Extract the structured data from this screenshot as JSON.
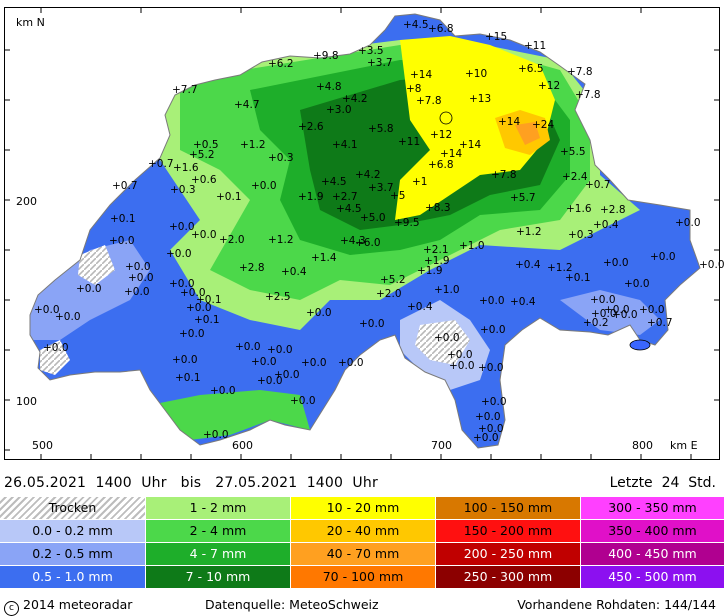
{
  "map": {
    "axis_y_unit": "km N",
    "axis_x_unit": "km E",
    "y_ticks": [
      "200",
      "100"
    ],
    "x_ticks": [
      "500",
      "600",
      "700",
      "800"
    ],
    "stations": [
      {
        "v": "4.5",
        "x": 403,
        "y": 28
      },
      {
        "v": "6.8",
        "x": 428,
        "y": 32
      },
      {
        "v": "15",
        "x": 485,
        "y": 40
      },
      {
        "v": "11",
        "x": 524,
        "y": 49
      },
      {
        "v": "3.5",
        "x": 358,
        "y": 54
      },
      {
        "v": "3.7",
        "x": 367,
        "y": 66
      },
      {
        "v": "9.8",
        "x": 313,
        "y": 59
      },
      {
        "v": "6.2",
        "x": 268,
        "y": 67
      },
      {
        "v": "7.8",
        "x": 567,
        "y": 75
      },
      {
        "v": "6.5",
        "x": 518,
        "y": 72
      },
      {
        "v": "10",
        "x": 465,
        "y": 77
      },
      {
        "v": "14",
        "x": 410,
        "y": 78
      },
      {
        "v": "12",
        "x": 538,
        "y": 89
      },
      {
        "v": "7.8",
        "x": 575,
        "y": 98
      },
      {
        "v": "7.7",
        "x": 172,
        "y": 93
      },
      {
        "v": "4.8",
        "x": 316,
        "y": 90
      },
      {
        "v": "4.2",
        "x": 342,
        "y": 102
      },
      {
        "v": "8",
        "x": 406,
        "y": 92
      },
      {
        "v": "7.8",
        "x": 416,
        "y": 104
      },
      {
        "v": "13",
        "x": 469,
        "y": 102
      },
      {
        "v": "4.7",
        "x": 234,
        "y": 108
      },
      {
        "v": "3.0",
        "x": 326,
        "y": 113
      },
      {
        "v": "14",
        "x": 498,
        "y": 125
      },
      {
        "v": "24",
        "x": 532,
        "y": 128
      },
      {
        "v": "2.6",
        "x": 298,
        "y": 130
      },
      {
        "v": "5.8",
        "x": 368,
        "y": 132
      },
      {
        "v": "12",
        "x": 430,
        "y": 138
      },
      {
        "v": "11",
        "x": 398,
        "y": 145
      },
      {
        "v": "14",
        "x": 459,
        "y": 148
      },
      {
        "v": "0.5",
        "x": 193,
        "y": 148
      },
      {
        "v": "4.1",
        "x": 332,
        "y": 148
      },
      {
        "v": "1.2",
        "x": 240,
        "y": 148
      },
      {
        "v": "5.2",
        "x": 189,
        "y": 158
      },
      {
        "v": "0.3",
        "x": 268,
        "y": 161
      },
      {
        "v": "14",
        "x": 440,
        "y": 157
      },
      {
        "v": "5.5",
        "x": 560,
        "y": 155
      },
      {
        "v": "0.7",
        "x": 148,
        "y": 167
      },
      {
        "v": "1.6",
        "x": 173,
        "y": 171
      },
      {
        "v": "6.8",
        "x": 428,
        "y": 168
      },
      {
        "v": "0.6",
        "x": 191,
        "y": 183
      },
      {
        "v": "4.5",
        "x": 321,
        "y": 185
      },
      {
        "v": "4.2",
        "x": 355,
        "y": 178
      },
      {
        "v": "3.7",
        "x": 368,
        "y": 191
      },
      {
        "v": "1",
        "x": 412,
        "y": 185
      },
      {
        "v": "7.8",
        "x": 491,
        "y": 178
      },
      {
        "v": "2.4",
        "x": 562,
        "y": 180
      },
      {
        "v": "0.7",
        "x": 112,
        "y": 189
      },
      {
        "v": "0.3",
        "x": 170,
        "y": 193
      },
      {
        "v": "0.0",
        "x": 251,
        "y": 189
      },
      {
        "v": "0.7",
        "x": 585,
        "y": 188
      },
      {
        "v": "1.9",
        "x": 298,
        "y": 200
      },
      {
        "v": "2.7",
        "x": 332,
        "y": 200
      },
      {
        "v": "5",
        "x": 390,
        "y": 199
      },
      {
        "v": "5.7",
        "x": 510,
        "y": 201
      },
      {
        "v": "0.1",
        "x": 216,
        "y": 200
      },
      {
        "v": "4.5",
        "x": 336,
        "y": 212
      },
      {
        "v": "8.3",
        "x": 425,
        "y": 211
      },
      {
        "v": "1.6",
        "x": 566,
        "y": 212
      },
      {
        "v": "2.8",
        "x": 600,
        "y": 213
      },
      {
        "v": "0.1",
        "x": 110,
        "y": 222
      },
      {
        "v": "5.0",
        "x": 360,
        "y": 221
      },
      {
        "v": "9.5",
        "x": 394,
        "y": 226
      },
      {
        "v": "0.4",
        "x": 593,
        "y": 228
      },
      {
        "v": "0.0",
        "x": 675,
        "y": 226
      },
      {
        "v": "0.0",
        "x": 169,
        "y": 230
      },
      {
        "v": "1.2",
        "x": 516,
        "y": 235
      },
      {
        "v": "0.3",
        "x": 568,
        "y": 238
      },
      {
        "v": "0.0",
        "x": 191,
        "y": 238
      },
      {
        "v": "0.0",
        "x": 109,
        "y": 244
      },
      {
        "v": "2.0",
        "x": 219,
        "y": 243
      },
      {
        "v": "1.2",
        "x": 268,
        "y": 243
      },
      {
        "v": "4.3",
        "x": 340,
        "y": 244
      },
      {
        "v": "6.0",
        "x": 355,
        "y": 246
      },
      {
        "v": "2.1",
        "x": 423,
        "y": 253
      },
      {
        "v": "1.0",
        "x": 459,
        "y": 249
      },
      {
        "v": "0.0",
        "x": 166,
        "y": 257
      },
      {
        "v": "1.9",
        "x": 424,
        "y": 264
      },
      {
        "v": "1.4",
        "x": 311,
        "y": 261
      },
      {
        "v": "0.0",
        "x": 603,
        "y": 266
      },
      {
        "v": "0.0",
        "x": 650,
        "y": 260
      },
      {
        "v": "0.0",
        "x": 699,
        "y": 268
      },
      {
        "v": "0.0",
        "x": 125,
        "y": 270
      },
      {
        "v": "2.8",
        "x": 239,
        "y": 271
      },
      {
        "v": "0.4",
        "x": 281,
        "y": 275
      },
      {
        "v": "1.9",
        "x": 417,
        "y": 274
      },
      {
        "v": "0.4",
        "x": 515,
        "y": 268
      },
      {
        "v": "1.2",
        "x": 547,
        "y": 271
      },
      {
        "v": "0.1",
        "x": 565,
        "y": 281
      },
      {
        "v": "0.0",
        "x": 128,
        "y": 281
      },
      {
        "v": "0.0",
        "x": 169,
        "y": 287
      },
      {
        "v": "5.2",
        "x": 380,
        "y": 283
      },
      {
        "v": "0.0",
        "x": 624,
        "y": 287
      },
      {
        "v": "0.0",
        "x": 76,
        "y": 292
      },
      {
        "v": "0.0",
        "x": 124,
        "y": 295
      },
      {
        "v": "0.0",
        "x": 180,
        "y": 296
      },
      {
        "v": "2.0",
        "x": 376,
        "y": 297
      },
      {
        "v": "1.0",
        "x": 434,
        "y": 293
      },
      {
        "v": "0.0",
        "x": 590,
        "y": 303
      },
      {
        "v": "2.5",
        "x": 265,
        "y": 300
      },
      {
        "v": "0.1",
        "x": 196,
        "y": 303
      },
      {
        "v": "0.0",
        "x": 479,
        "y": 304
      },
      {
        "v": "0.4",
        "x": 510,
        "y": 305
      },
      {
        "v": "0.0",
        "x": 604,
        "y": 313
      },
      {
        "v": "0.0",
        "x": 639,
        "y": 313
      },
      {
        "v": "0.0",
        "x": 34,
        "y": 313
      },
      {
        "v": "0.0",
        "x": 186,
        "y": 311
      },
      {
        "v": "0.4",
        "x": 407,
        "y": 310
      },
      {
        "v": "0.0",
        "x": 306,
        "y": 316
      },
      {
        "v": "0.0",
        "x": 591,
        "y": 317
      },
      {
        "v": "0.0",
        "x": 612,
        "y": 318
      },
      {
        "v": "0.0",
        "x": 55,
        "y": 320
      },
      {
        "v": "0.1",
        "x": 194,
        "y": 323
      },
      {
        "v": "0.0",
        "x": 359,
        "y": 327
      },
      {
        "v": "0.7",
        "x": 647,
        "y": 326
      },
      {
        "v": "0.2",
        "x": 583,
        "y": 326
      },
      {
        "v": "0.0",
        "x": 480,
        "y": 333
      },
      {
        "v": "0.0",
        "x": 43,
        "y": 351
      },
      {
        "v": "0.0",
        "x": 179,
        "y": 337
      },
      {
        "v": "0.0",
        "x": 434,
        "y": 341
      },
      {
        "v": "0.0",
        "x": 235,
        "y": 350
      },
      {
        "v": "0.0",
        "x": 267,
        "y": 353
      },
      {
        "v": "0.0",
        "x": 172,
        "y": 363
      },
      {
        "v": "0.0",
        "x": 251,
        "y": 365
      },
      {
        "v": "0.0",
        "x": 301,
        "y": 366
      },
      {
        "v": "0.0",
        "x": 338,
        "y": 366
      },
      {
        "v": "0.0",
        "x": 447,
        "y": 358
      },
      {
        "v": "0.0",
        "x": 449,
        "y": 369
      },
      {
        "v": "0.0",
        "x": 478,
        "y": 371
      },
      {
        "v": "0.0",
        "x": 274,
        "y": 378
      },
      {
        "v": "0.1",
        "x": 175,
        "y": 381
      },
      {
        "v": "0.0",
        "x": 257,
        "y": 384
      },
      {
        "v": "0.0",
        "x": 210,
        "y": 394
      },
      {
        "v": "0.0",
        "x": 290,
        "y": 404
      },
      {
        "v": "0.0",
        "x": 481,
        "y": 405
      },
      {
        "v": "0.0",
        "x": 475,
        "y": 420
      },
      {
        "v": "0.0",
        "x": 478,
        "y": 432
      },
      {
        "v": "0.0",
        "x": 473,
        "y": 441
      },
      {
        "v": "0.0",
        "x": 203,
        "y": 438
      }
    ]
  },
  "header": {
    "range_text": "26.05.2021  1400  Uhr   bis   27.05.2021  1400  Uhr",
    "period_text": "Letzte  24  Std."
  },
  "legend": [
    {
      "label": "Trocken",
      "color": "#ffffff",
      "hatched": true
    },
    {
      "label": "0.0 - 0.2 mm",
      "color": "#b8c8f8"
    },
    {
      "label": "0.2 - 0.5 mm",
      "color": "#8aa4f6"
    },
    {
      "label": "0.5 - 1.0 mm",
      "color": "#3c6ef0"
    },
    {
      "label": "1 - 2 mm",
      "color": "#a8f078"
    },
    {
      "label": "2 - 4 mm",
      "color": "#4cd84a"
    },
    {
      "label": "4 - 7 mm",
      "color": "#1eae2a"
    },
    {
      "label": "7 - 10 mm",
      "color": "#0e7a18"
    },
    {
      "label": "10 - 20 mm",
      "color": "#ffff00"
    },
    {
      "label": "20 - 40 mm",
      "color": "#ffc800"
    },
    {
      "label": "40 - 70 mm",
      "color": "#ffa020"
    },
    {
      "label": "70 - 100 mm",
      "color": "#ff7800"
    },
    {
      "label": "100 - 150 mm",
      "color": "#d87800"
    },
    {
      "label": "150 - 200 mm",
      "color": "#ff1010"
    },
    {
      "label": "200 - 250 mm",
      "color": "#c00000"
    },
    {
      "label": "250 - 300 mm",
      "color": "#8c0000"
    },
    {
      "label": "300 - 350 mm",
      "color": "#ff40ff"
    },
    {
      "label": "350 - 400 mm",
      "color": "#e010c8"
    },
    {
      "label": "400 - 450 mm",
      "color": "#b00090"
    },
    {
      "label": "450 - 500 mm",
      "color": "#8c10f0"
    }
  ],
  "footer": {
    "copyright": "2014  meteoradar",
    "source": "Datenquelle: MeteoSchweiz",
    "raw_data": "Vorhandene Rohdaten: 144/144"
  }
}
